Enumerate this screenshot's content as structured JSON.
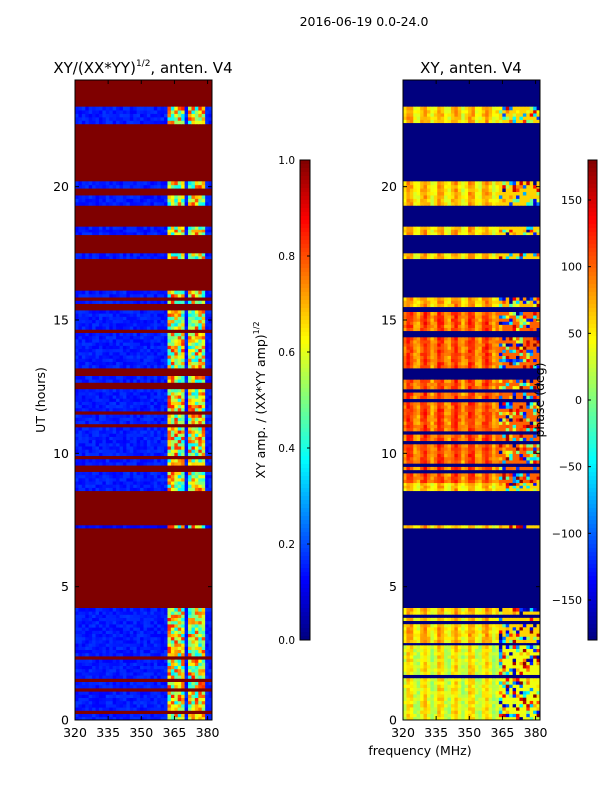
{
  "figure": {
    "suptitle": "2016-06-19 0.0-24.0",
    "xlabel": "frequency (MHz)"
  },
  "colors": {
    "jet": [
      "#00007f",
      "#0000ff",
      "#007fff",
      "#00ffff",
      "#7fff7f",
      "#ffff00",
      "#ff7f00",
      "#ff0000",
      "#7f0000"
    ]
  },
  "chart_data": [
    {
      "type": "heatmap",
      "title_main": "XY/(XX*YY)",
      "title_sup": "1/2",
      "title_rest": ", anten. V4",
      "xlabel": "",
      "ylabel": "UT (hours)",
      "xlim": [
        320,
        382
      ],
      "ylim": [
        0,
        24
      ],
      "xticks": [
        320,
        335,
        350,
        365,
        380
      ],
      "yticks": [
        0,
        5,
        10,
        15,
        20
      ],
      "colorbar": {
        "label": "XY amp. / (XX*YY amp)",
        "label_sup": "1/2",
        "range": [
          0.0,
          1.0
        ],
        "ticks": [
          "0.0",
          "0.2",
          "0.4",
          "0.6",
          "0.8",
          "1.0"
        ],
        "tick_values": [
          0.0,
          0.2,
          0.4,
          0.6,
          0.8,
          1.0
        ]
      },
      "background_value": 1.0,
      "bands_utc": [
        {
          "from": 0.0,
          "to": 4.2,
          "value": 0.15,
          "striped": true
        },
        {
          "from": 7.2,
          "to": 7.3,
          "value": 0.12,
          "striped": false
        },
        {
          "from": 8.6,
          "to": 12.9,
          "value": 0.15,
          "striped": true
        },
        {
          "from": 13.2,
          "to": 16.1,
          "value": 0.15,
          "striped": true
        },
        {
          "from": 17.3,
          "to": 17.5,
          "value": 0.15,
          "striped": false
        },
        {
          "from": 18.2,
          "to": 18.5,
          "value": 0.15,
          "striped": false
        },
        {
          "from": 19.3,
          "to": 20.2,
          "value": 0.15,
          "striped": true
        },
        {
          "from": 22.1,
          "to": 23.0,
          "value": 0.15,
          "striped": true
        }
      ],
      "active_freq_mhz": [
        [
          362,
          366
        ],
        [
          367,
          370
        ],
        [
          371,
          374
        ],
        [
          375,
          379
        ]
      ],
      "notes": "Amplitude ratio ~0.1-0.2 in data-bearing intervals, rising to 0.5-1.0 in the 362-380 MHz channels; flagged intervals saturate at 1.0."
    },
    {
      "type": "heatmap",
      "title_main": "XY, anten. V4",
      "xlabel": "",
      "ylabel": "",
      "xlim": [
        320,
        382
      ],
      "ylim": [
        0,
        24
      ],
      "xticks": [
        320,
        335,
        350,
        365,
        380
      ],
      "yticks": [
        0,
        5,
        10,
        15,
        20
      ],
      "colorbar": {
        "label": "phase (deg)",
        "range": [
          -180,
          180
        ],
        "ticks": [
          "150",
          "100",
          "50",
          "0",
          "−50",
          "−100",
          "−150"
        ],
        "tick_values": [
          150,
          100,
          50,
          0,
          -50,
          -100,
          -150
        ]
      },
      "background_value": -180,
      "bands_utc": [
        {
          "from": 0.0,
          "to": 2.8,
          "value": 40,
          "striped": true
        },
        {
          "from": 2.9,
          "to": 4.2,
          "value": 60,
          "striped": true
        },
        {
          "from": 7.2,
          "to": 7.3,
          "value": 60,
          "striped": false
        },
        {
          "from": 8.6,
          "to": 8.9,
          "value": 60,
          "striped": false
        },
        {
          "from": 8.9,
          "to": 12.9,
          "value": 100,
          "striped": true
        },
        {
          "from": 13.2,
          "to": 15.3,
          "value": 100,
          "striped": true
        },
        {
          "from": 15.5,
          "to": 16.1,
          "value": 70,
          "striped": true
        },
        {
          "from": 17.3,
          "to": 17.5,
          "value": 60,
          "striped": false
        },
        {
          "from": 18.2,
          "to": 18.5,
          "value": 60,
          "striped": false
        },
        {
          "from": 19.3,
          "to": 20.2,
          "value": 60,
          "striped": true
        },
        {
          "from": 22.4,
          "to": 23.0,
          "value": 60,
          "striped": true
        }
      ],
      "variable_from_mhz": 363,
      "notes": "Phase ~50-130 deg across data intervals with vertical stripes; above ~363 MHz phase scatters across the full range; flagged intervals at -180."
    }
  ]
}
